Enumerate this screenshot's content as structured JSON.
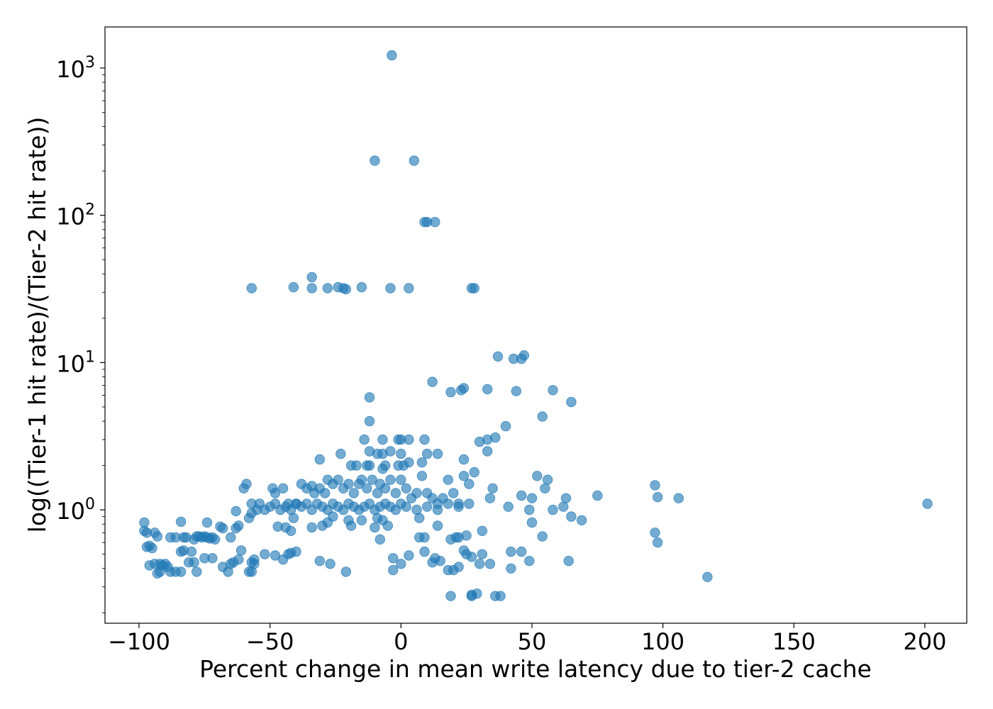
{
  "chart_data": {
    "type": "scatter",
    "title": "",
    "xlabel": "Percent change in mean write latency due to tier-2 cache",
    "ylabel": "log((Tier-1 hit rate)/(Tier-2 hit rate))",
    "xlim": [
      -113,
      216
    ],
    "ylim": [
      0.17,
      1900
    ],
    "yscale": "log",
    "grid": false,
    "point_color": "#1f77b4",
    "x_ticks": [
      -100,
      -50,
      0,
      50,
      100,
      150,
      200
    ],
    "x_tick_labels": [
      "−100",
      "−50",
      "0",
      "50",
      "100",
      "150",
      "200"
    ],
    "y_ticks": [
      1,
      10,
      100,
      1000
    ],
    "y_tick_labels": [
      {
        "base": "10",
        "exp": "0"
      },
      {
        "base": "10",
        "exp": "1"
      },
      {
        "base": "10",
        "exp": "2"
      },
      {
        "base": "10",
        "exp": "3"
      }
    ],
    "points": [
      [
        -3.5,
        1220
      ],
      [
        -10,
        235
      ],
      [
        5,
        235
      ],
      [
        9,
        90
      ],
      [
        10,
        90
      ],
      [
        13,
        90
      ],
      [
        -57,
        32
      ],
      [
        -41,
        32.5
      ],
      [
        -34,
        38
      ],
      [
        -34,
        32
      ],
      [
        -28,
        32
      ],
      [
        -24,
        32.5
      ],
      [
        -22,
        32
      ],
      [
        -15,
        32.5
      ],
      [
        -21,
        31.5
      ],
      [
        -4,
        32
      ],
      [
        3,
        32
      ],
      [
        27,
        32
      ],
      [
        28,
        32
      ],
      [
        37,
        11
      ],
      [
        43,
        10.6
      ],
      [
        46,
        10.6
      ],
      [
        47,
        11.2
      ],
      [
        12,
        7.4
      ],
      [
        19,
        6.3
      ],
      [
        23,
        6.5
      ],
      [
        24,
        6.7
      ],
      [
        33,
        6.6
      ],
      [
        44,
        6.4
      ],
      [
        58,
        6.5
      ],
      [
        65,
        5.4
      ],
      [
        -12,
        5.8
      ],
      [
        54,
        4.3
      ],
      [
        -12,
        4.0
      ],
      [
        40,
        3.7
      ],
      [
        -14,
        3
      ],
      [
        -7,
        3
      ],
      [
        -1,
        3
      ],
      [
        0,
        3
      ],
      [
        3,
        3
      ],
      [
        9,
        3
      ],
      [
        30,
        2.9
      ],
      [
        33,
        3
      ],
      [
        36,
        3.1
      ],
      [
        -31,
        2.2
      ],
      [
        -23,
        2.4
      ],
      [
        -12,
        2.5
      ],
      [
        -9,
        2.4
      ],
      [
        -7,
        2.4
      ],
      [
        -4,
        2.5
      ],
      [
        0,
        2.4
      ],
      [
        10,
        2.4
      ],
      [
        14,
        2.4
      ],
      [
        24,
        2.2
      ],
      [
        33,
        2.5
      ],
      [
        -19,
        2
      ],
      [
        -17,
        2
      ],
      [
        -13,
        2
      ],
      [
        -12,
        2
      ],
      [
        -7,
        1.9
      ],
      [
        -6,
        2
      ],
      [
        -1,
        2
      ],
      [
        1,
        2
      ],
      [
        3,
        2.1
      ],
      [
        8,
        2.1
      ],
      [
        -60,
        1.4
      ],
      [
        -59,
        1.5
      ],
      [
        -57,
        1.1
      ],
      [
        -49,
        1.4
      ],
      [
        -48,
        1.3
      ],
      [
        -45,
        1.4
      ],
      [
        -43,
        1.1
      ],
      [
        -40,
        1.1
      ],
      [
        -38,
        1.5
      ],
      [
        -36,
        1.4
      ],
      [
        -34,
        1.45
      ],
      [
        -33,
        1.3
      ],
      [
        -31,
        1.4
      ],
      [
        -29,
        1.3
      ],
      [
        -28,
        1.6
      ],
      [
        -26,
        1.5
      ],
      [
        -24,
        1.6
      ],
      [
        -22,
        1.4
      ],
      [
        -20,
        1.5
      ],
      [
        -18,
        1.3
      ],
      [
        -16,
        1.5
      ],
      [
        -15,
        1.6
      ],
      [
        -13,
        1.4
      ],
      [
        -11,
        1.6
      ],
      [
        -9,
        1.3
      ],
      [
        -8,
        1.5
      ],
      [
        -6,
        1.4
      ],
      [
        -4,
        1.6
      ],
      [
        -2,
        1.3
      ],
      [
        0,
        1.6
      ],
      [
        2,
        1.4
      ],
      [
        4,
        1.2
      ],
      [
        6,
        1.3
      ],
      [
        8,
        1.7
      ],
      [
        10,
        1.3
      ],
      [
        12,
        1.2
      ],
      [
        14,
        1.1
      ],
      [
        16,
        1.2
      ],
      [
        18,
        1.6
      ],
      [
        20,
        1.3
      ],
      [
        22,
        1.1
      ],
      [
        24,
        1.7
      ],
      [
        26,
        1.5
      ],
      [
        28,
        1.8
      ],
      [
        34,
        1.2
      ],
      [
        35,
        1.4
      ],
      [
        41,
        1.05
      ],
      [
        46,
        1.25
      ],
      [
        49,
        1.0
      ],
      [
        50,
        1.2
      ],
      [
        52,
        1.7
      ],
      [
        55,
        1.4
      ],
      [
        56,
        1.6
      ],
      [
        58,
        1.0
      ],
      [
        62,
        1.05
      ],
      [
        63,
        1.2
      ],
      [
        65,
        0.9
      ],
      [
        69,
        0.85
      ],
      [
        75,
        1.25
      ],
      [
        -55,
        1.0
      ],
      [
        -54,
        1.1
      ],
      [
        -52,
        1.0
      ],
      [
        -50,
        1.05
      ],
      [
        -48,
        1.1
      ],
      [
        -46,
        1.0
      ],
      [
        -44,
        1.05
      ],
      [
        -42,
        1.0
      ],
      [
        -40,
        1.1
      ],
      [
        -38,
        1.05
      ],
      [
        -36,
        1.1
      ],
      [
        -34,
        1.0
      ],
      [
        -32,
        1.1
      ],
      [
        -30,
        1.05
      ],
      [
        -28,
        1.0
      ],
      [
        -26,
        1.1
      ],
      [
        -24,
        1.05
      ],
      [
        -22,
        1.0
      ],
      [
        -20,
        1.1
      ],
      [
        -18,
        1.05
      ],
      [
        -16,
        1.0
      ],
      [
        -14,
        1.05
      ],
      [
        -12,
        1.1
      ],
      [
        -10,
        1.0
      ],
      [
        -8,
        1.05
      ],
      [
        -6,
        1.1
      ],
      [
        -4,
        1.05
      ],
      [
        -2,
        1.0
      ],
      [
        0,
        1.1
      ],
      [
        2,
        1.05
      ],
      [
        6,
        1.0
      ],
      [
        10,
        1.05
      ],
      [
        14,
        1.0
      ],
      [
        18,
        1.1
      ],
      [
        22,
        1.05
      ],
      [
        26,
        1.1
      ],
      [
        -57,
        0.95
      ],
      [
        -58,
        0.88
      ],
      [
        -63,
        0.98
      ],
      [
        -63,
        0.75
      ],
      [
        -62,
        0.78
      ],
      [
        -69,
        0.77
      ],
      [
        -68,
        0.75
      ],
      [
        -65,
        0.65
      ],
      [
        -74,
        0.82
      ],
      [
        -75,
        0.66
      ],
      [
        -72,
        0.65
      ],
      [
        -47,
        0.77
      ],
      [
        -44,
        0.76
      ],
      [
        -42,
        0.72
      ],
      [
        -41,
        0.88
      ],
      [
        -34,
        0.76
      ],
      [
        -30,
        0.78
      ],
      [
        -28,
        0.82
      ],
      [
        -26,
        0.9
      ],
      [
        -20,
        0.85
      ],
      [
        -19,
        0.78
      ],
      [
        -15,
        0.85
      ],
      [
        -10,
        0.76
      ],
      [
        -9,
        0.88
      ],
      [
        -7,
        0.85
      ],
      [
        -5,
        0.78
      ],
      [
        -8,
        0.63
      ],
      [
        7,
        0.88
      ],
      [
        7,
        0.65
      ],
      [
        9,
        0.65
      ],
      [
        14,
        0.78
      ],
      [
        19,
        0.63
      ],
      [
        21,
        0.65
      ],
      [
        22,
        0.65
      ],
      [
        25,
        0.67
      ],
      [
        31,
        0.72
      ],
      [
        54,
        0.66
      ],
      [
        50,
        0.82
      ],
      [
        -98,
        0.82
      ],
      [
        -97,
        0.7
      ],
      [
        -98,
        0.72
      ],
      [
        -95,
        0.55
      ],
      [
        -94,
        0.7
      ],
      [
        -93,
        0.66
      ],
      [
        -88,
        0.65
      ],
      [
        -86,
        0.65
      ],
      [
        -84,
        0.83
      ],
      [
        -83,
        0.65
      ],
      [
        -82,
        0.65
      ],
      [
        -79,
        0.63
      ],
      [
        -78,
        0.66
      ],
      [
        -77,
        0.66
      ],
      [
        -76,
        0.65
      ],
      [
        -74,
        0.65
      ],
      [
        -73,
        0.64
      ],
      [
        -71,
        0.63
      ],
      [
        -97,
        0.56
      ],
      [
        -96,
        0.57
      ],
      [
        -96,
        0.42
      ],
      [
        -94,
        0.43
      ],
      [
        -92,
        0.43
      ],
      [
        -91,
        0.42
      ],
      [
        -90,
        0.43
      ],
      [
        -89,
        0.41
      ],
      [
        -93,
        0.37
      ],
      [
        -92,
        0.38
      ],
      [
        -88,
        0.38
      ],
      [
        -86,
        0.38
      ],
      [
        -84,
        0.38
      ],
      [
        -84,
        0.52
      ],
      [
        -83,
        0.53
      ],
      [
        -81,
        0.44
      ],
      [
        -80,
        0.52
      ],
      [
        -79,
        0.44
      ],
      [
        -78,
        0.38
      ],
      [
        -75,
        0.47
      ],
      [
        -72,
        0.47
      ],
      [
        -61,
        0.53
      ],
      [
        -62,
        0.46
      ],
      [
        -64,
        0.44
      ],
      [
        -65,
        0.43
      ],
      [
        -66,
        0.38
      ],
      [
        -68,
        0.41
      ],
      [
        -57,
        0.44
      ],
      [
        -57,
        0.38
      ],
      [
        -56,
        0.46
      ],
      [
        -56,
        0.43
      ],
      [
        -58,
        0.38
      ],
      [
        -52,
        0.5
      ],
      [
        -48,
        0.49
      ],
      [
        -45,
        0.46
      ],
      [
        -43,
        0.5
      ],
      [
        -42,
        0.51
      ],
      [
        -40,
        0.52
      ],
      [
        -31,
        0.45
      ],
      [
        -27,
        0.43
      ],
      [
        -21,
        0.38
      ],
      [
        -3,
        0.39
      ],
      [
        -3,
        0.47
      ],
      [
        0,
        0.43
      ],
      [
        3,
        0.49
      ],
      [
        9,
        0.52
      ],
      [
        12,
        0.44
      ],
      [
        13,
        0.47
      ],
      [
        15,
        0.45
      ],
      [
        18,
        0.39
      ],
      [
        20,
        0.39
      ],
      [
        22,
        0.41
      ],
      [
        24,
        0.53
      ],
      [
        25,
        0.5
      ],
      [
        27,
        0.48
      ],
      [
        30,
        0.43
      ],
      [
        31,
        0.5
      ],
      [
        34,
        0.43
      ],
      [
        42,
        0.52
      ],
      [
        42,
        0.4
      ],
      [
        46,
        0.52
      ],
      [
        49,
        0.45
      ],
      [
        64,
        0.45
      ],
      [
        19,
        0.26
      ],
      [
        27,
        0.26
      ],
      [
        27,
        0.265
      ],
      [
        29,
        0.27
      ],
      [
        36,
        0.26
      ],
      [
        38,
        0.26
      ],
      [
        97,
        1.47
      ],
      [
        98,
        1.22
      ],
      [
        106,
        1.2
      ],
      [
        97,
        0.7
      ],
      [
        98,
        0.6
      ],
      [
        117,
        0.35
      ],
      [
        201,
        1.1
      ]
    ]
  }
}
